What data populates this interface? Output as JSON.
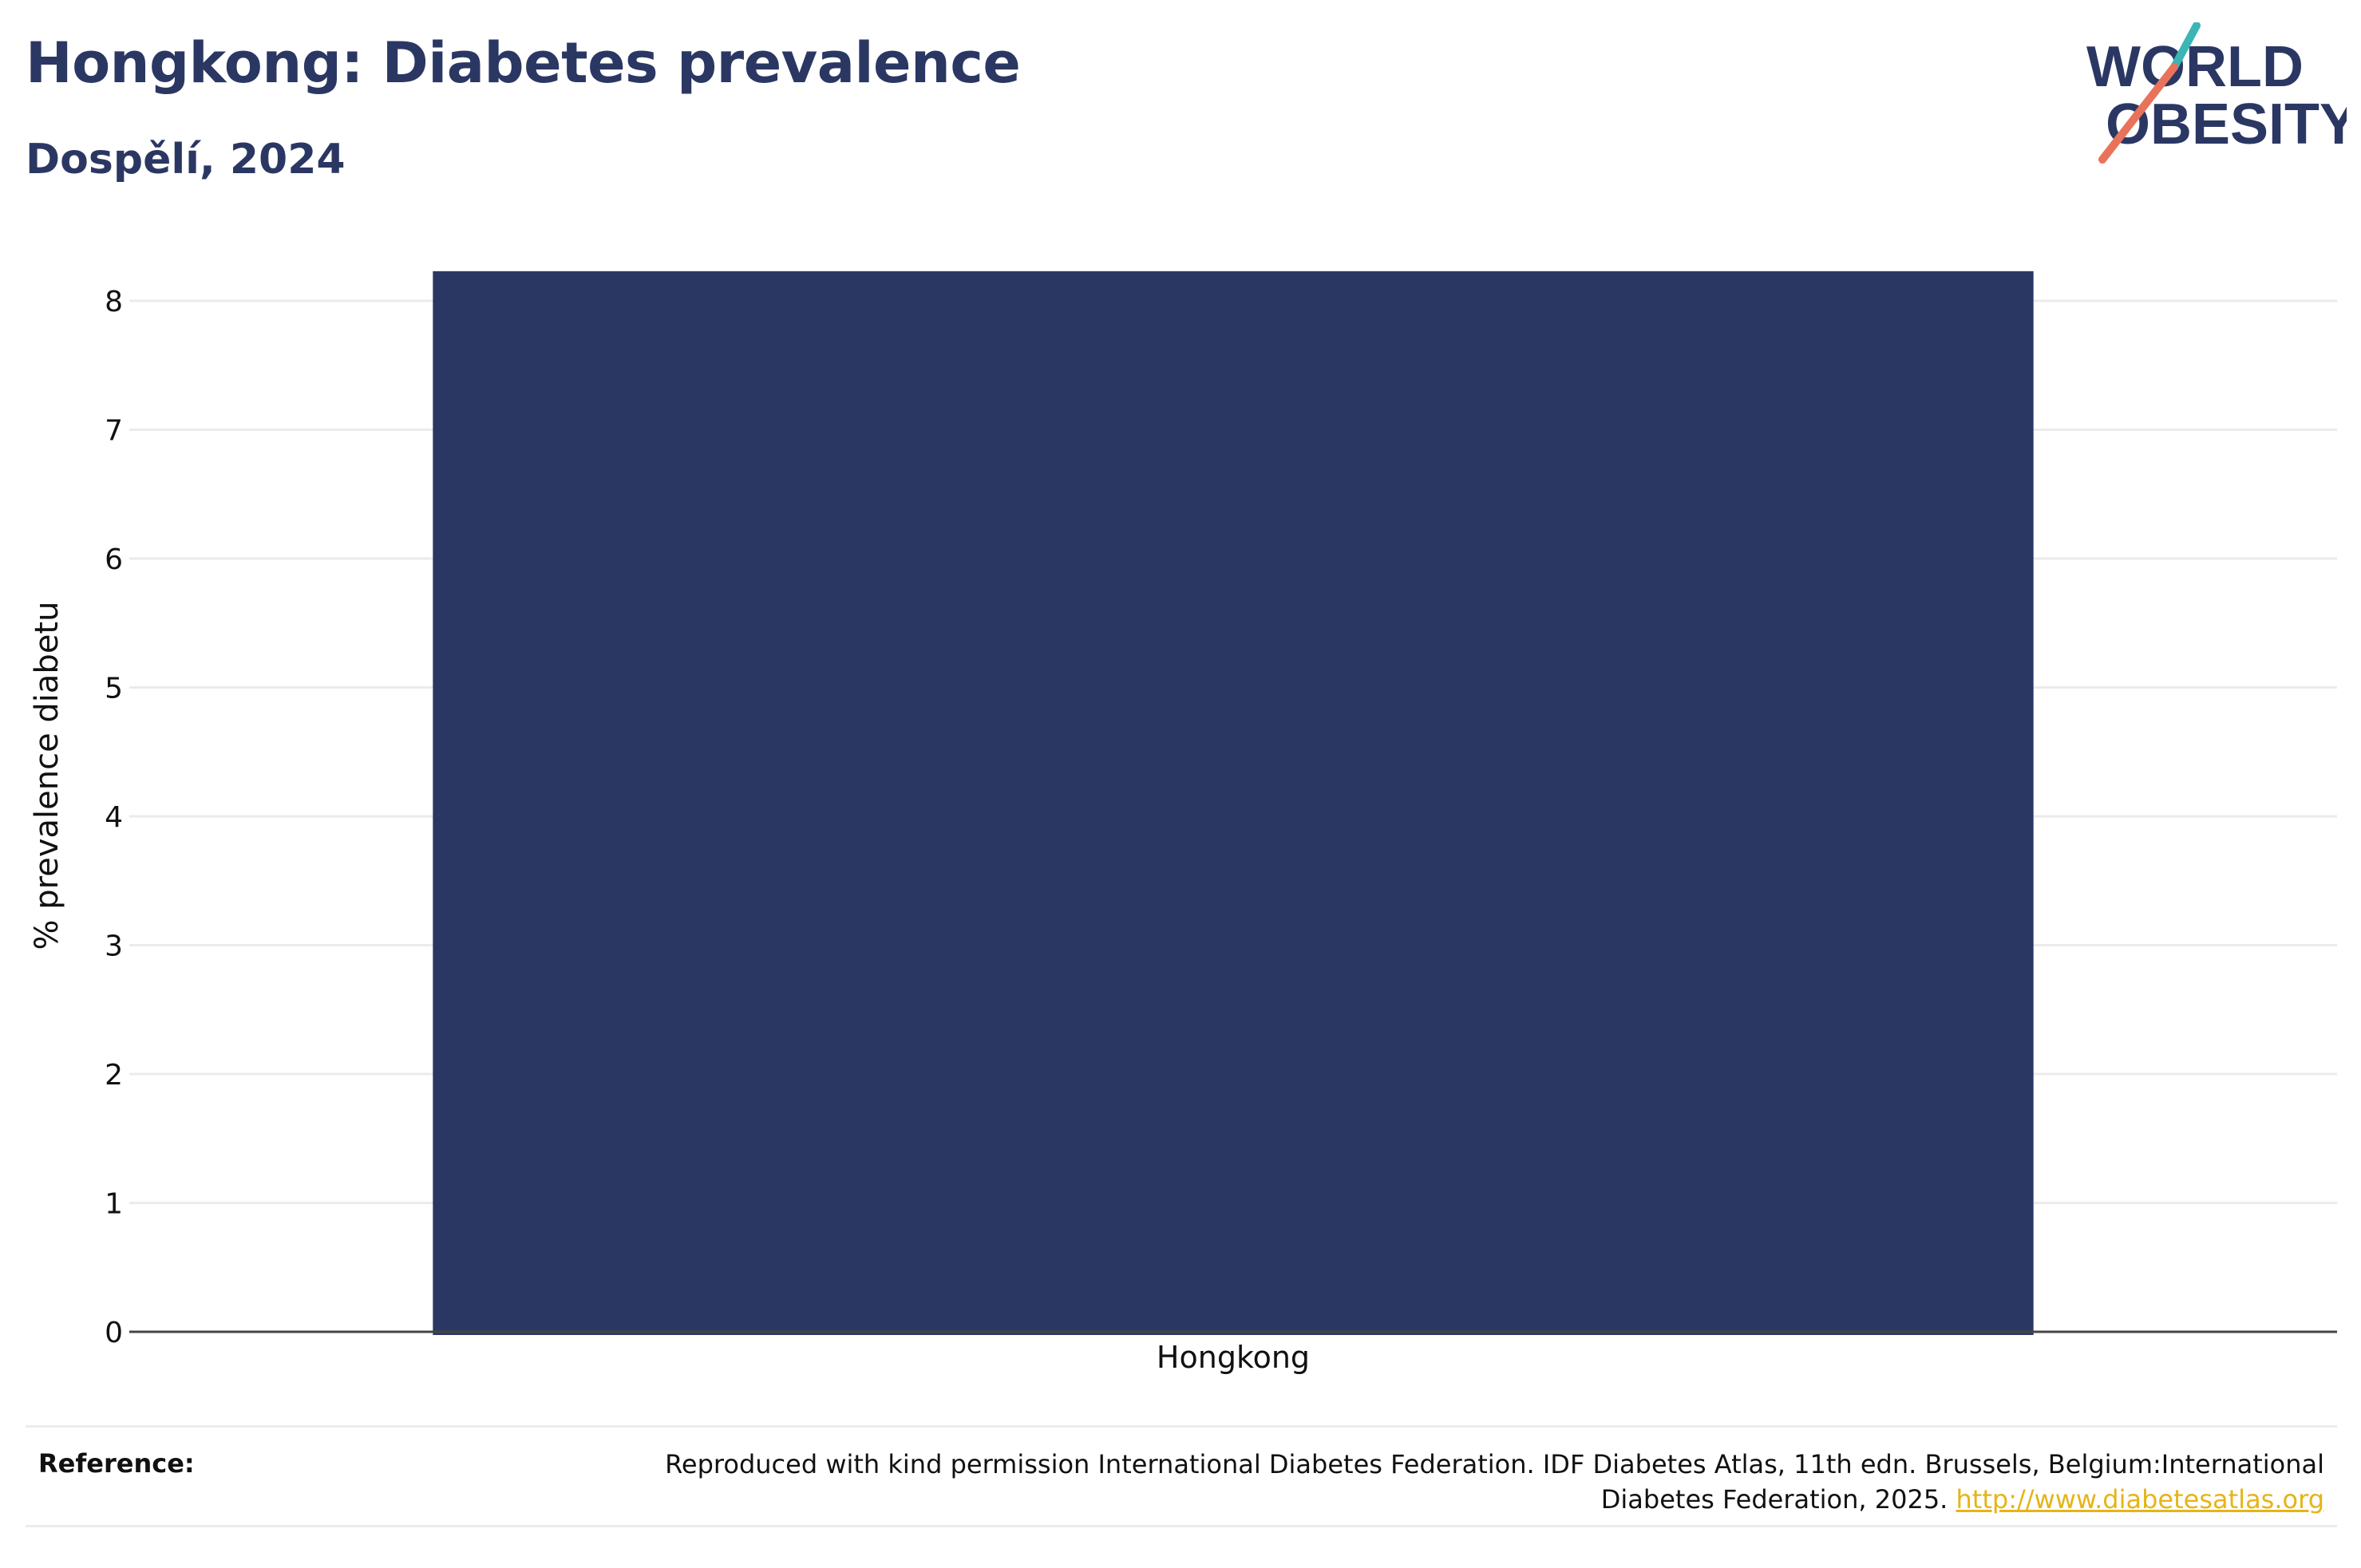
{
  "header": {
    "title": "Hongkong: Diabetes prevalence",
    "subtitle": "Dospělí, 2024"
  },
  "logo": {
    "line1": "WORLD",
    "line2": "OBESITY",
    "colors": {
      "text": "#2b3763",
      "slash_top": "#3bb5b5",
      "slash_bottom": "#e8735a"
    }
  },
  "chart_data": {
    "type": "bar",
    "categories": [
      "Hongkong"
    ],
    "values": [
      8.23
    ],
    "ylabel": "% prevalence diabetu",
    "xlabel": "",
    "ylim": [
      0,
      8
    ],
    "yticks": [
      "0",
      "1",
      "2",
      "3",
      "4",
      "5",
      "6",
      "7",
      "8"
    ],
    "grid": true,
    "bar_color": "#2b3763"
  },
  "reference": {
    "label": "Reference:",
    "text_line1": "Reproduced with kind permission International Diabetes Federation. IDF Diabetes Atlas, 11th edn. Brussels, Belgium:International",
    "text_line2": "Diabetes Federation, 2025.",
    "link": "http://www.diabetesatlas.org"
  }
}
